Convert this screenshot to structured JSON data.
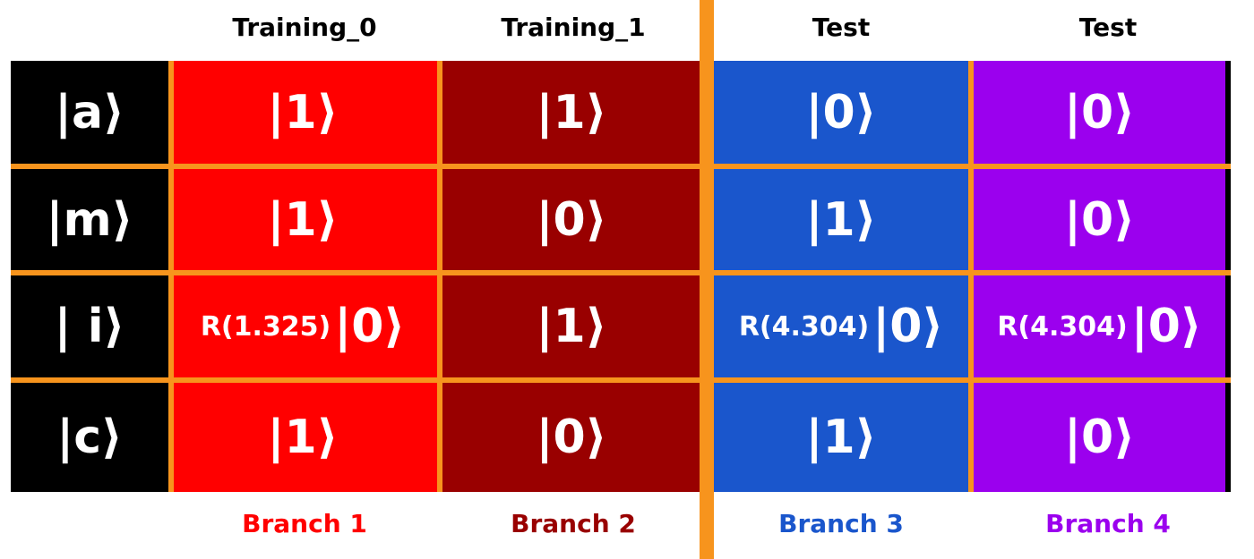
{
  "colors": {
    "orange": "#f7941d",
    "black": "#000000",
    "branch1": "#ff0000",
    "branch2": "#990000",
    "branch3": "#1a56cc",
    "branch4": "#9b00ee",
    "text_on_cell": "#ffffff"
  },
  "columns": [
    {
      "header": "Training_0",
      "branch": "Branch 1"
    },
    {
      "header": "Training_1",
      "branch": "Branch 2"
    },
    {
      "header": "Test",
      "branch": "Branch 3"
    },
    {
      "header": "Test",
      "branch": "Branch 4"
    }
  ],
  "rows": [
    {
      "label": "|a⟩",
      "cells": [
        "|1⟩",
        "|1⟩",
        "|0⟩",
        "|0⟩"
      ]
    },
    {
      "label": "|m⟩",
      "cells": [
        "|1⟩",
        "|0⟩",
        "|1⟩",
        "|0⟩"
      ]
    },
    {
      "label": "| i⟩",
      "cells": [
        {
          "prefix": "R(1.325)",
          "ket": "|0⟩"
        },
        "|1⟩",
        {
          "prefix": "R(4.304)",
          "ket": "|0⟩"
        },
        {
          "prefix": "R(4.304)",
          "ket": "|0⟩"
        }
      ]
    },
    {
      "label": "|c⟩",
      "cells": [
        "|1⟩",
        "|0⟩",
        "|1⟩",
        "|0⟩"
      ]
    }
  ]
}
